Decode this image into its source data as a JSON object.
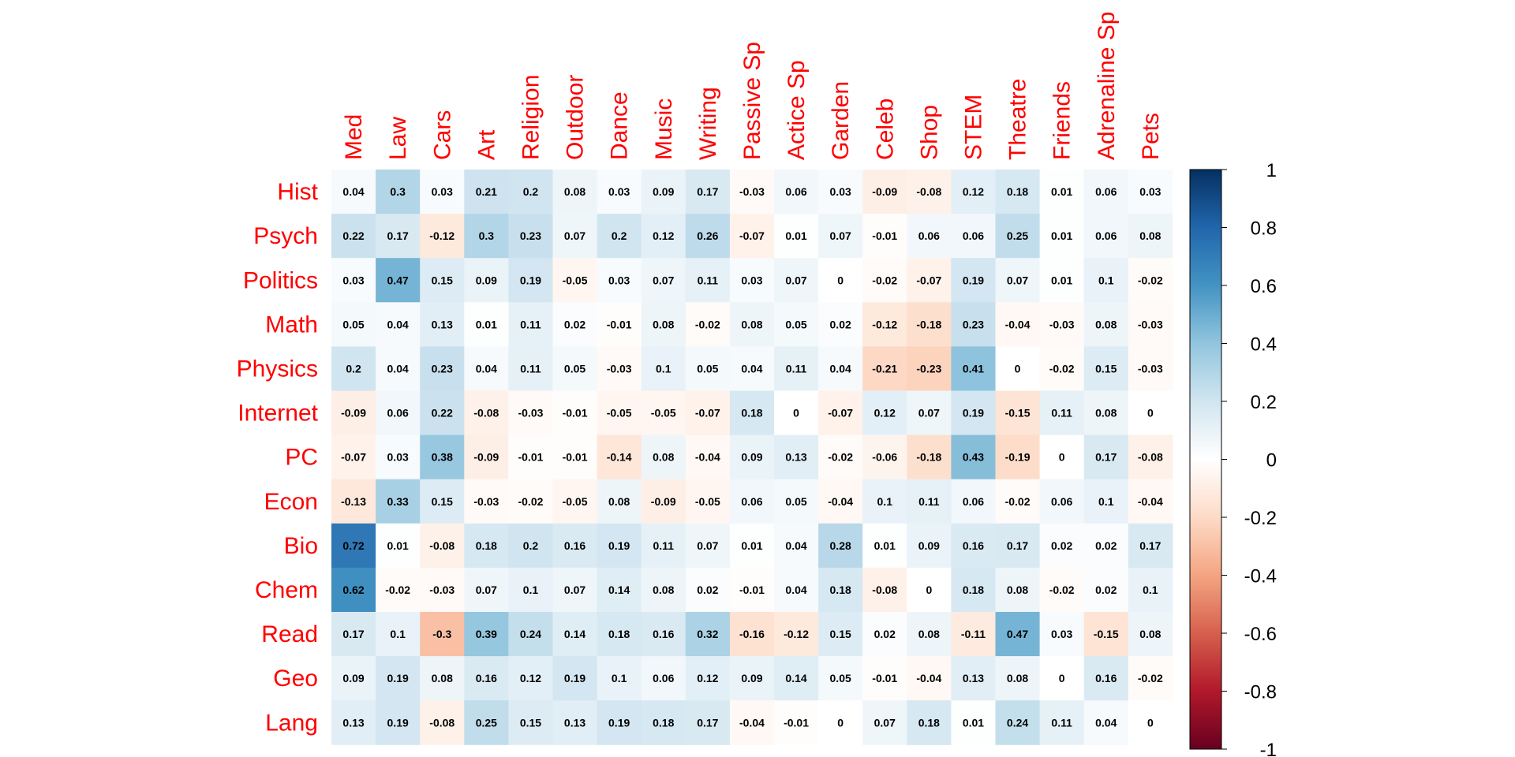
{
  "chart_data": {
    "type": "heatmap",
    "columns": [
      "Med",
      "Law",
      "Cars",
      "Art",
      "Religion",
      "Outdoor",
      "Dance",
      "Music",
      "Writing",
      "Passive Sp",
      "Actice Sp",
      "Garden",
      "Celeb",
      "Shop",
      "STEM",
      "Theatre",
      "Friends",
      "Adrenaline Sp",
      "Pets"
    ],
    "rows": [
      "Hist",
      "Psych",
      "Politics",
      "Math",
      "Physics",
      "Internet",
      "PC",
      "Econ",
      "Bio",
      "Chem",
      "Read",
      "Geo",
      "Lang"
    ],
    "values": [
      [
        0.04,
        0.3,
        0.03,
        0.21,
        0.2,
        0.08,
        0.03,
        0.09,
        0.17,
        -0.03,
        0.06,
        0.03,
        -0.09,
        -0.08,
        0.12,
        0.18,
        0.01,
        0.06,
        0.03
      ],
      [
        0.22,
        0.17,
        -0.12,
        0.3,
        0.23,
        0.07,
        0.2,
        0.12,
        0.26,
        -0.07,
        0.01,
        0.07,
        -0.01,
        0.06,
        0.06,
        0.25,
        0.01,
        0.06,
        0.08
      ],
      [
        0.03,
        0.47,
        0.15,
        0.09,
        0.19,
        -0.05,
        0.03,
        0.07,
        0.11,
        0.03,
        0.07,
        0,
        -0.02,
        -0.07,
        0.19,
        0.07,
        0.01,
        0.1,
        -0.02
      ],
      [
        0.05,
        0.04,
        0.13,
        0.01,
        0.11,
        0.02,
        -0.01,
        0.08,
        -0.02,
        0.08,
        0.05,
        0.02,
        -0.12,
        -0.18,
        0.23,
        -0.04,
        -0.03,
        0.08,
        -0.03
      ],
      [
        0.2,
        0.04,
        0.23,
        0.04,
        0.11,
        0.05,
        -0.03,
        0.1,
        0.05,
        0.04,
        0.11,
        0.04,
        -0.21,
        -0.23,
        0.41,
        0,
        -0.02,
        0.15,
        -0.03
      ],
      [
        -0.09,
        0.06,
        0.22,
        -0.08,
        -0.03,
        -0.01,
        -0.05,
        -0.05,
        -0.07,
        0.18,
        0,
        -0.07,
        0.12,
        0.07,
        0.19,
        -0.15,
        0.11,
        0.08,
        0
      ],
      [
        -0.07,
        0.03,
        0.38,
        -0.09,
        -0.01,
        -0.01,
        -0.14,
        0.08,
        -0.04,
        0.09,
        0.13,
        -0.02,
        -0.06,
        -0.18,
        0.43,
        -0.19,
        0,
        0.17,
        -0.08
      ],
      [
        -0.13,
        0.33,
        0.15,
        -0.03,
        -0.02,
        -0.05,
        0.08,
        -0.09,
        -0.05,
        0.06,
        0.05,
        -0.04,
        0.1,
        0.11,
        0.06,
        -0.02,
        0.06,
        0.1,
        -0.04
      ],
      [
        0.72,
        0.01,
        -0.08,
        0.18,
        0.2,
        0.16,
        0.19,
        0.11,
        0.07,
        0.01,
        0.04,
        0.28,
        0.01,
        0.09,
        0.16,
        0.17,
        0.02,
        0.02,
        0.17
      ],
      [
        0.62,
        -0.02,
        -0.03,
        0.07,
        0.1,
        0.07,
        0.14,
        0.08,
        0.02,
        -0.01,
        0.04,
        0.18,
        -0.08,
        0,
        0.18,
        0.08,
        -0.02,
        0.02,
        0.1
      ],
      [
        0.17,
        0.1,
        -0.3,
        0.39,
        0.24,
        0.14,
        0.18,
        0.16,
        0.32,
        -0.16,
        -0.12,
        0.15,
        0.02,
        0.08,
        -0.11,
        0.47,
        0.03,
        -0.15,
        0.08
      ],
      [
        0.09,
        0.19,
        0.08,
        0.16,
        0.12,
        0.19,
        0.1,
        0.06,
        0.12,
        0.09,
        0.14,
        0.05,
        -0.01,
        -0.04,
        0.13,
        0.08,
        0,
        0.16,
        -0.02
      ],
      [
        0.13,
        0.19,
        -0.08,
        0.25,
        0.15,
        0.13,
        0.19,
        0.18,
        0.17,
        -0.04,
        -0.01,
        0,
        0.07,
        0.18,
        0.01,
        0.24,
        0.11,
        0.04,
        0
      ]
    ],
    "colorbar": {
      "min": -1,
      "max": 1,
      "ticks": [
        "1",
        "0.8",
        "0.6",
        "0.4",
        "0.2",
        "0",
        "-0.2",
        "-0.4",
        "-0.6",
        "-0.8",
        "-1"
      ]
    },
    "colors": {
      "negative_strong": "#67001F",
      "negative_mid": "#D6604D",
      "neutral": "#FFFFFF",
      "positive_mid": "#4393C3",
      "positive_strong": "#053061",
      "label_color": "#ff0000"
    }
  }
}
